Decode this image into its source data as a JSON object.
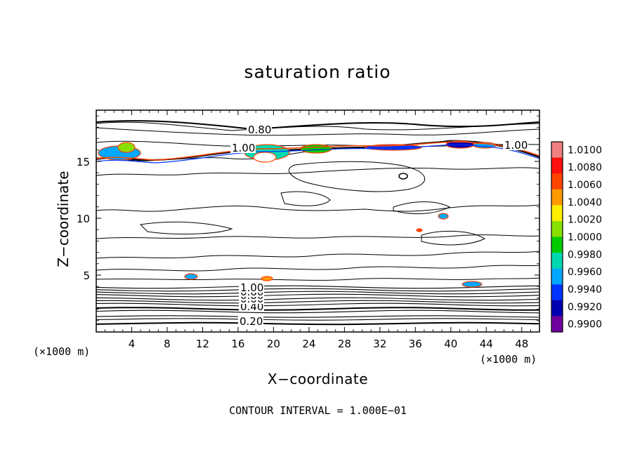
{
  "chart_data": {
    "type": "contour",
    "title": "saturation ratio",
    "xlabel": "X−coordinate",
    "ylabel": "Z−coordinate",
    "x_unit_label": "(×1000 m)",
    "xlim": [
      0,
      50
    ],
    "ylim": [
      0,
      19.5
    ],
    "x_ticks": [
      4,
      8,
      12,
      16,
      20,
      24,
      28,
      32,
      36,
      40,
      44,
      48
    ],
    "y_ticks": [
      5,
      10,
      15
    ],
    "contour_interval_text": "CONTOUR INTERVAL = 1.000E−01",
    "contour_labels": [
      "0.20",
      "0.40",
      "0.60",
      "0.80",
      "1.00",
      "1.00",
      "0.80",
      "0.60",
      "1.00"
    ],
    "colorbar": {
      "levels": [
        "1.0100",
        "1.0080",
        "1.0060",
        "1.0040",
        "1.0020",
        "1.0000",
        "0.9980",
        "0.9960",
        "0.9940",
        "0.9920",
        "0.9900"
      ],
      "colors": [
        "#f08080",
        "#ff1010",
        "#ff4400",
        "#ff9900",
        "#ffee00",
        "#88e000",
        "#00cc00",
        "#00d8b0",
        "#00a8ff",
        "#0033ff",
        "#0000b0",
        "#7000a0"
      ]
    }
  }
}
